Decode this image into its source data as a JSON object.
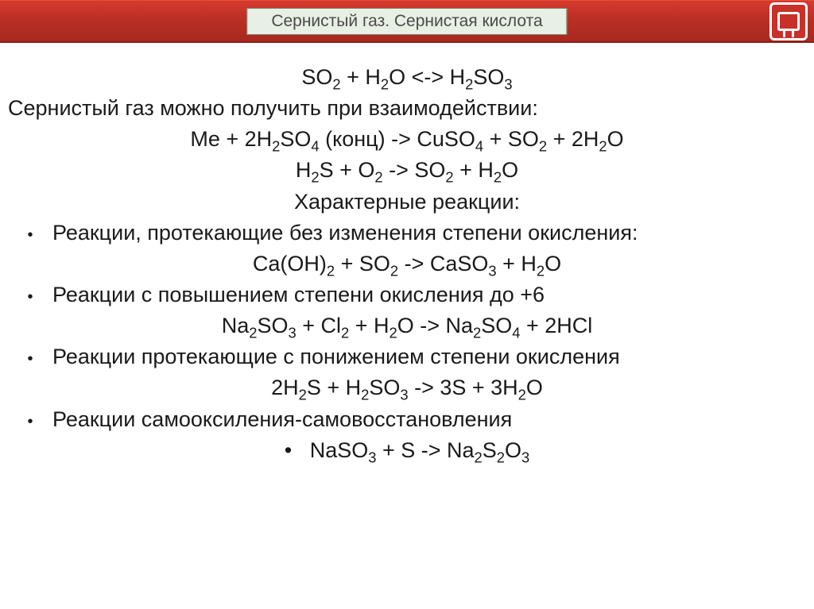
{
  "header": {
    "title": "Сернистый газ. Сернистая кислота",
    "title_bg": "#e8efe4",
    "bar_gradient_top": "#d63a2e",
    "bar_gradient_bottom": "#a82820"
  },
  "content": {
    "eq1_left": "SO",
    "eq1_a": "2",
    "eq1_plus": " + H",
    "eq1_b": "2",
    "eq1_o": "O <-> H",
    "eq1_c": "2",
    "eq1_so": "SO",
    "eq1_d": "3",
    "intro": "Сернистый газ можно получить при взаимодействии:",
    "eq2": {
      "p1": "Me + 2H",
      "s1": "2",
      "p2": "SO",
      "s2": "4",
      "p3": " (конц) -> CuSO",
      "s3": "4",
      "p4": " + SO",
      "s4": "2",
      "p5": " + 2H",
      "s5": "2",
      "p6": "O"
    },
    "eq3": {
      "p1": "H",
      "s1": "2",
      "p2": "S + O",
      "s2": "2",
      "p3": " -> SO",
      "s3": "2",
      "p4": " + H",
      "s4": "2",
      "p5": "O"
    },
    "char_title": "Характерные реакции:",
    "b1": "Реакции, протекающие без изменения степени окисления:",
    "eq4": {
      "p1": "Ca(OH)",
      "s1": "2",
      "p2": " + SO",
      "s2": "2",
      "p3": " -> CaSO",
      "s3": "3",
      "p4": " + H",
      "s4": "2",
      "p5": "O"
    },
    "b2": "Реакции с повышением степени окисления до +6",
    "eq5": {
      "p1": "Na",
      "s1": "2",
      "p2": "SO",
      "s2": "3",
      "p3": " + Cl",
      "s3": "2",
      "p4": " + H",
      "s4": "2",
      "p5": "O -> Na",
      "s5": "2",
      "p6": "SO",
      "s6": "4",
      "p7": " + 2HCl"
    },
    "b3": "Реакции протекающие с понижением степени окисления",
    "eq6": {
      "p1": "2H",
      "s1": "2",
      "p2": "S + H",
      "s2": "2",
      "p3": "SO",
      "s3": "3",
      "p4": " -> 3S + 3H",
      "s4": "2",
      "p5": "O"
    },
    "b4": "Реакции самооксиления-самовосстановления",
    "eq7": {
      "bullet": "•",
      "p1": "NaSO",
      "s1": "3",
      "p2": " + S -> Na",
      "s2": "2",
      "p3": "S",
      "s3": "2",
      "p4": "O",
      "s4": "3"
    }
  },
  "style": {
    "body_fontsize": 27,
    "text_color": "#1a1a1a",
    "bullet_char": "•"
  }
}
